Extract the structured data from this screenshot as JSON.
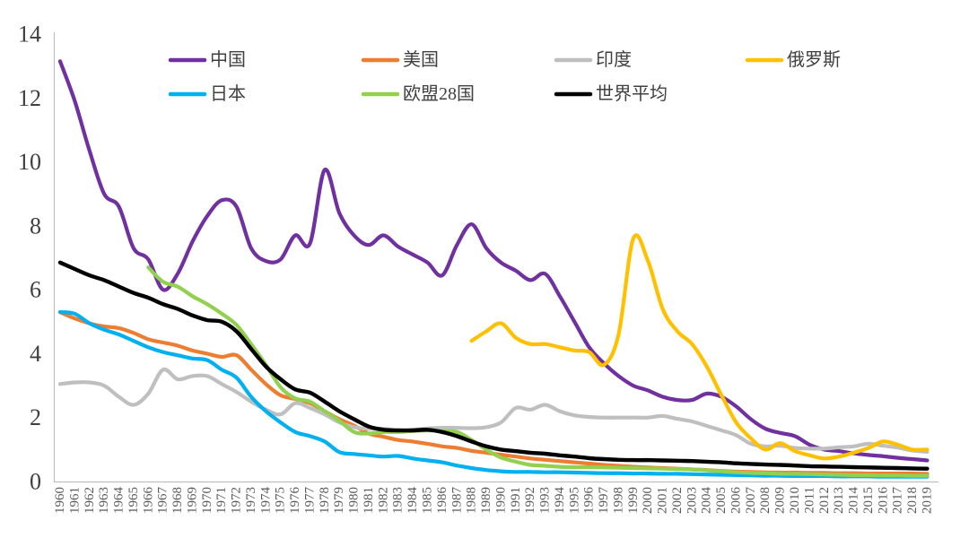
{
  "page": {
    "background": "#FFFFFF"
  },
  "chart_data": {
    "type": "line",
    "title": "",
    "xlabel": "",
    "ylabel": "",
    "ylim": [
      0,
      14
    ],
    "y_ticks": [
      0,
      2,
      4,
      6,
      8,
      10,
      12,
      14
    ],
    "x_ticks": [
      "1960",
      "1961",
      "1962",
      "1963",
      "1964",
      "1965",
      "1966",
      "1967",
      "1968",
      "1969",
      "1970",
      "1971",
      "1972",
      "1973",
      "1974",
      "1975",
      "1976",
      "1977",
      "1978",
      "1979",
      "1980",
      "1981",
      "1982",
      "1983",
      "1984",
      "1985",
      "1986",
      "1987",
      "1988",
      "1989",
      "1990",
      "1991",
      "1992",
      "1993",
      "1994",
      "1995",
      "1996",
      "1997",
      "1998",
      "1999",
      "2000",
      "2001",
      "2002",
      "2003",
      "2004",
      "2005",
      "2006",
      "2007",
      "2008",
      "2009",
      "2010",
      "2011",
      "2012",
      "2013",
      "2014",
      "2015",
      "2016",
      "2017",
      "2018",
      "2019"
    ],
    "grid": false,
    "legend_position": "top",
    "axis_color": "#BFBFBF",
    "x_tick_color": "#595959",
    "y_tick_color": "#404040",
    "legend_text_color": "#404040",
    "series": [
      {
        "name": "中国",
        "color": "#7030A0",
        "start_year": 1960,
        "values": [
          13.15,
          11.9,
          10.35,
          9.0,
          8.6,
          7.3,
          6.95,
          6.0,
          6.5,
          7.5,
          8.3,
          8.8,
          8.6,
          7.3,
          6.9,
          6.95,
          7.7,
          7.45,
          9.75,
          8.4,
          7.7,
          7.4,
          7.7,
          7.35,
          7.1,
          6.85,
          6.45,
          7.4,
          8.05,
          7.3,
          6.85,
          6.6,
          6.3,
          6.5,
          5.8,
          5.0,
          4.2,
          3.7,
          3.3,
          3.0,
          2.85,
          2.65,
          2.55,
          2.55,
          2.75,
          2.65,
          2.35,
          1.95,
          1.65,
          1.52,
          1.42,
          1.15,
          1.0,
          0.95,
          0.88,
          0.83,
          0.79,
          0.74,
          0.7,
          0.66
        ]
      },
      {
        "name": "美国",
        "color": "#ED7D31",
        "start_year": 1960,
        "values": [
          5.3,
          5.1,
          4.95,
          4.85,
          4.8,
          4.65,
          4.45,
          4.35,
          4.25,
          4.1,
          4.0,
          3.9,
          3.95,
          3.5,
          3.05,
          2.7,
          2.58,
          2.45,
          2.2,
          1.95,
          1.75,
          1.5,
          1.4,
          1.3,
          1.25,
          1.18,
          1.1,
          1.05,
          0.96,
          0.9,
          0.84,
          0.78,
          0.72,
          0.68,
          0.64,
          0.6,
          0.56,
          0.52,
          0.49,
          0.46,
          0.44,
          0.42,
          0.4,
          0.38,
          0.36,
          0.33,
          0.31,
          0.3,
          0.29,
          0.28,
          0.28,
          0.27,
          0.27,
          0.26,
          0.26,
          0.25,
          0.25,
          0.25,
          0.25,
          0.24
        ]
      },
      {
        "name": "印度",
        "color": "#BFBFBF",
        "start_year": 1960,
        "values": [
          3.05,
          3.1,
          3.1,
          3.0,
          2.65,
          2.4,
          2.75,
          3.5,
          3.2,
          3.3,
          3.3,
          3.05,
          2.8,
          2.5,
          2.25,
          2.1,
          2.45,
          2.3,
          2.1,
          1.85,
          1.7,
          1.65,
          1.65,
          1.6,
          1.62,
          1.66,
          1.68,
          1.68,
          1.67,
          1.7,
          1.85,
          2.3,
          2.25,
          2.4,
          2.2,
          2.07,
          2.02,
          2.0,
          2.0,
          2.0,
          2.0,
          2.05,
          1.96,
          1.88,
          1.74,
          1.6,
          1.45,
          1.18,
          1.1,
          1.12,
          1.05,
          1.03,
          1.03,
          1.07,
          1.1,
          1.18,
          1.12,
          1.06,
          0.97,
          0.93
        ]
      },
      {
        "name": "俄罗斯",
        "color": "#FFC000",
        "start_year": 1988,
        "values": [
          4.4,
          4.7,
          4.95,
          4.5,
          4.3,
          4.3,
          4.2,
          4.1,
          4.05,
          3.65,
          4.6,
          7.6,
          6.9,
          5.4,
          4.7,
          4.3,
          3.6,
          2.7,
          1.85,
          1.35,
          1.0,
          1.2,
          0.95,
          0.82,
          0.72,
          0.78,
          0.9,
          1.05,
          1.25,
          1.15,
          1.0,
          1.0
        ]
      },
      {
        "name": "日本",
        "color": "#00B0F0",
        "start_year": 1960,
        "values": [
          5.3,
          5.25,
          4.95,
          4.75,
          4.6,
          4.4,
          4.2,
          4.05,
          3.95,
          3.85,
          3.8,
          3.5,
          3.25,
          2.65,
          2.2,
          1.85,
          1.55,
          1.42,
          1.25,
          0.92,
          0.86,
          0.82,
          0.78,
          0.8,
          0.72,
          0.66,
          0.6,
          0.5,
          0.42,
          0.36,
          0.32,
          0.3,
          0.3,
          0.29,
          0.29,
          0.28,
          0.27,
          0.26,
          0.26,
          0.25,
          0.25,
          0.24,
          0.24,
          0.23,
          0.22,
          0.21,
          0.2,
          0.19,
          0.18,
          0.18,
          0.17,
          0.17,
          0.17,
          0.16,
          0.16,
          0.16,
          0.15,
          0.15,
          0.15,
          0.15
        ]
      },
      {
        "name": "欧盟28国",
        "color": "#92D050",
        "start_year": 1966,
        "values": [
          6.7,
          6.25,
          6.1,
          5.8,
          5.55,
          5.25,
          4.9,
          4.3,
          3.65,
          2.95,
          2.6,
          2.5,
          2.2,
          1.9,
          1.55,
          1.5,
          1.55,
          1.55,
          1.58,
          1.6,
          1.58,
          1.55,
          1.3,
          1.0,
          0.75,
          0.62,
          0.52,
          0.49,
          0.46,
          0.45,
          0.45,
          0.44,
          0.43,
          0.42,
          0.41,
          0.4,
          0.39,
          0.38,
          0.35,
          0.32,
          0.29,
          0.27,
          0.26,
          0.24,
          0.24,
          0.23,
          0.22,
          0.21,
          0.2,
          0.2,
          0.19,
          0.19,
          0.18,
          0.18
        ]
      },
      {
        "name": "世界平均",
        "color": "#000000",
        "start_year": 1960,
        "values": [
          6.85,
          6.65,
          6.45,
          6.3,
          6.1,
          5.9,
          5.75,
          5.55,
          5.4,
          5.2,
          5.05,
          5.0,
          4.7,
          4.15,
          3.6,
          3.2,
          2.88,
          2.78,
          2.5,
          2.2,
          1.95,
          1.72,
          1.62,
          1.6,
          1.6,
          1.62,
          1.55,
          1.42,
          1.25,
          1.1,
          1.0,
          0.95,
          0.9,
          0.87,
          0.82,
          0.78,
          0.73,
          0.7,
          0.68,
          0.67,
          0.67,
          0.66,
          0.65,
          0.64,
          0.62,
          0.6,
          0.57,
          0.55,
          0.53,
          0.52,
          0.5,
          0.48,
          0.47,
          0.46,
          0.45,
          0.44,
          0.43,
          0.42,
          0.41,
          0.4
        ]
      }
    ]
  }
}
